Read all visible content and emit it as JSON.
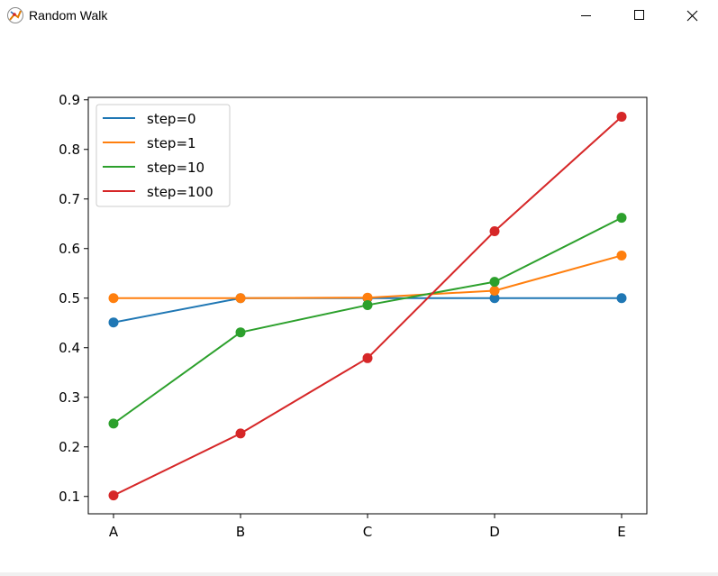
{
  "window": {
    "title": "Random Walk",
    "controls": {
      "minimize_icon": "minimize-icon",
      "maximize_icon": "maximize-icon",
      "close_icon": "close-icon"
    }
  },
  "chart_data": {
    "type": "line",
    "categories": [
      "A",
      "B",
      "C",
      "D",
      "E"
    ],
    "ylim": [
      0.065,
      0.905
    ],
    "yticks": [
      0.1,
      0.2,
      0.3,
      0.4,
      0.5,
      0.6,
      0.7,
      0.8,
      0.9
    ],
    "ytick_labels": [
      "0.1",
      "0.2",
      "0.3",
      "0.4",
      "0.5",
      "0.6",
      "0.7",
      "0.8",
      "0.9"
    ],
    "markers": true,
    "grid": false,
    "legend_position": "top-left",
    "series": [
      {
        "name": "step=0",
        "color": "#1f77b4",
        "values": [
          0.451,
          0.5,
          0.5,
          0.5,
          0.5
        ]
      },
      {
        "name": "step=1",
        "color": "#ff7f0e",
        "values": [
          0.5,
          0.5,
          0.501,
          0.515,
          0.586
        ]
      },
      {
        "name": "step=10",
        "color": "#2ca02c",
        "values": [
          0.247,
          0.431,
          0.486,
          0.533,
          0.662
        ]
      },
      {
        "name": "step=100",
        "color": "#d62728",
        "values": [
          0.102,
          0.227,
          0.379,
          0.635,
          0.866
        ]
      }
    ]
  }
}
